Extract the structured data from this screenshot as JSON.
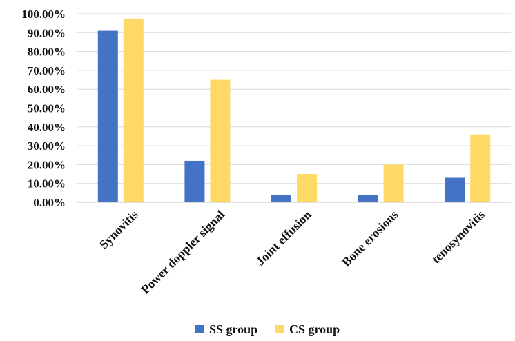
{
  "chart_data": {
    "type": "bar",
    "categories": [
      "Synovitis",
      "Power doppler signal",
      "Joint effusion",
      "Bone erosions",
      "tenosynovitis"
    ],
    "series": [
      {
        "name": "SS group",
        "color": "#4472C4",
        "values": [
          91,
          22,
          4,
          4,
          13
        ]
      },
      {
        "name": "CS group",
        "color": "#FFD966",
        "values": [
          97.5,
          65,
          15,
          20,
          36
        ]
      }
    ],
    "y_ticks": [
      "0.00%",
      "10.00%",
      "20.00%",
      "30.00%",
      "40.00%",
      "50.00%",
      "60.00%",
      "70.00%",
      "80.00%",
      "90.00%",
      "100.00%"
    ],
    "ylim": [
      0,
      100
    ],
    "grid": true,
    "legend_position": "bottom"
  }
}
